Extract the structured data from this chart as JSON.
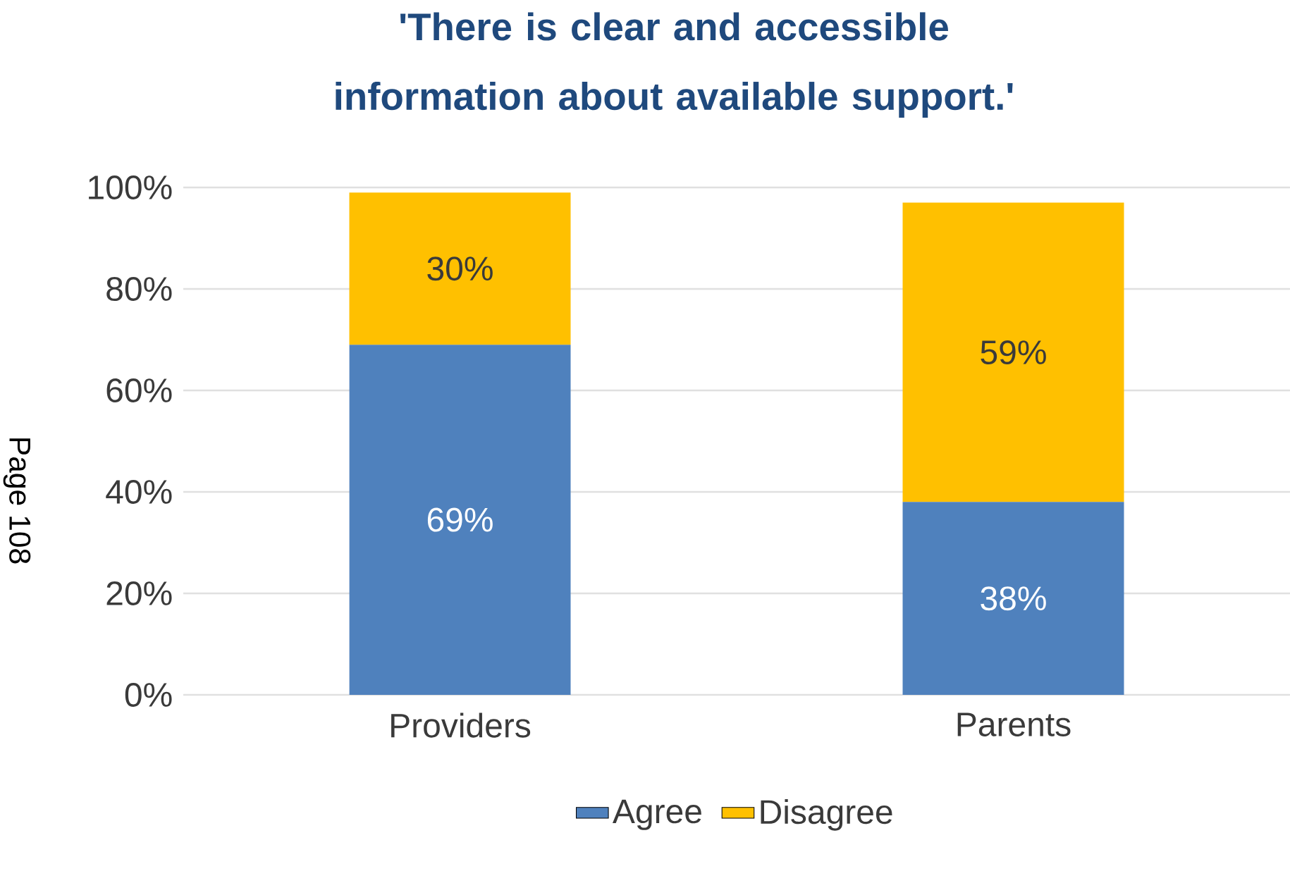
{
  "chart_data": {
    "type": "bar",
    "stacked": true,
    "title": "'There is clear and accessible information about available support.'",
    "categories": [
      "Providers",
      "Parents"
    ],
    "series": [
      {
        "name": "Agree",
        "color": "#4f81bd",
        "values": [
          69,
          38
        ],
        "value_labels": [
          "69%",
          "38%"
        ]
      },
      {
        "name": "Disagree",
        "color": "#ffc000",
        "values": [
          30,
          59
        ],
        "value_labels": [
          "30%",
          "59%"
        ]
      }
    ],
    "ylim": [
      0,
      100
    ],
    "yticks": [
      {
        "value": 0,
        "label": "0%"
      },
      {
        "value": 20,
        "label": "20%"
      },
      {
        "value": 40,
        "label": "40%"
      },
      {
        "value": 60,
        "label": "60%"
      },
      {
        "value": 80,
        "label": "80%"
      },
      {
        "value": 100,
        "label": "100%"
      }
    ],
    "grid": "y",
    "legend": "bottom",
    "annotations": [
      "Page 108"
    ]
  }
}
